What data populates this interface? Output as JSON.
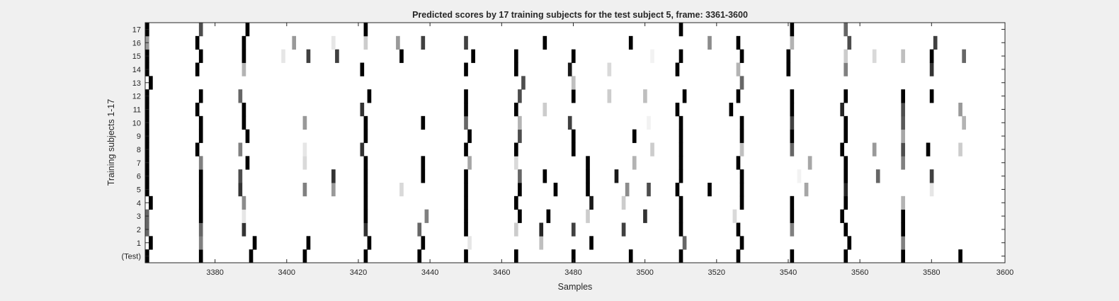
{
  "chart_data": {
    "type": "heatmap",
    "title": "Predicted scores by 17 training subjects for the test subject 5, frame: 3361-3600",
    "xlabel": "Samples",
    "ylabel": "Training subjects 1-17",
    "xlim": [
      3361,
      3600
    ],
    "x_ticks": [
      3380,
      3400,
      3420,
      3440,
      3460,
      3480,
      3500,
      3520,
      3540,
      3560,
      3580,
      3600
    ],
    "y_tick_labels": [
      "(Test)",
      "1",
      "2",
      "3",
      "4",
      "5",
      "6",
      "7",
      "8",
      "9",
      "10",
      "11",
      "12",
      "13",
      "14",
      "15",
      "16",
      "17"
    ],
    "grid": false,
    "colormap": "white-to-black grayscale (higher score darker)",
    "rows": [
      {
        "label": "(Test)",
        "cells": [
          [
            3361,
            1
          ],
          [
            3376,
            1
          ],
          [
            3390,
            1
          ],
          [
            3405,
            1
          ],
          [
            3422,
            1
          ],
          [
            3437,
            1
          ],
          [
            3450,
            1
          ],
          [
            3464,
            1
          ],
          [
            3480,
            1
          ],
          [
            3496,
            1
          ],
          [
            3510,
            1
          ],
          [
            3526,
            1
          ],
          [
            3541,
            1
          ],
          [
            3556,
            1
          ],
          [
            3572,
            1
          ],
          [
            3588,
            1
          ]
        ]
      },
      {
        "label": "1",
        "cells": [
          [
            3362,
            1
          ],
          [
            3376,
            0.5
          ],
          [
            3391,
            1
          ],
          [
            3406,
            1
          ],
          [
            3423,
            1
          ],
          [
            3438,
            1
          ],
          [
            3451,
            0.1
          ],
          [
            3471,
            0.25
          ],
          [
            3485,
            1
          ],
          [
            3511,
            0.6
          ],
          [
            3527,
            1
          ],
          [
            3557,
            1
          ],
          [
            3572,
            0.5
          ]
        ]
      },
      {
        "label": "2",
        "cells": [
          [
            3361,
            0.6
          ],
          [
            3376,
            0.6
          ],
          [
            3388,
            0.8
          ],
          [
            3422,
            0.8
          ],
          [
            3437,
            0.6
          ],
          [
            3450,
            1
          ],
          [
            3464,
            0.2
          ],
          [
            3471,
            0.85
          ],
          [
            3480,
            0.75
          ],
          [
            3494,
            0.75
          ],
          [
            3510,
            1
          ],
          [
            3526,
            1
          ],
          [
            3541,
            0.5
          ],
          [
            3556,
            1
          ],
          [
            3572,
            1
          ]
        ]
      },
      {
        "label": "3",
        "cells": [
          [
            3361,
            0.6
          ],
          [
            3376,
            1
          ],
          [
            3388,
            0.1
          ],
          [
            3422,
            1
          ],
          [
            3439,
            0.5
          ],
          [
            3450,
            1
          ],
          [
            3465,
            1
          ],
          [
            3473,
            1
          ],
          [
            3484,
            0.2
          ],
          [
            3500,
            0.8
          ],
          [
            3510,
            1
          ],
          [
            3525,
            0.15
          ],
          [
            3541,
            1
          ],
          [
            3555,
            1
          ],
          [
            3572,
            1
          ]
        ]
      },
      {
        "label": "4",
        "cells": [
          [
            3362,
            1
          ],
          [
            3376,
            1
          ],
          [
            3388,
            0.45
          ],
          [
            3422,
            1
          ],
          [
            3450,
            1
          ],
          [
            3464,
            1
          ],
          [
            3485,
            0.9
          ],
          [
            3494,
            0.2
          ],
          [
            3510,
            1
          ],
          [
            3527,
            1
          ],
          [
            3541,
            1
          ],
          [
            3556,
            1
          ],
          [
            3572,
            0.3
          ]
        ]
      },
      {
        "label": "5",
        "cells": [
          [
            3361,
            1
          ],
          [
            3376,
            1
          ],
          [
            3387,
            0.8
          ],
          [
            3405,
            0.5
          ],
          [
            3413,
            0.4
          ],
          [
            3422,
            1
          ],
          [
            3432,
            0.15
          ],
          [
            3450,
            1
          ],
          [
            3465,
            1
          ],
          [
            3475,
            1
          ],
          [
            3484,
            1
          ],
          [
            3495,
            0.45
          ],
          [
            3501,
            0.7
          ],
          [
            3509,
            1
          ],
          [
            3518,
            1
          ],
          [
            3527,
            1
          ],
          [
            3545,
            0.35
          ],
          [
            3556,
            0.85
          ],
          [
            3580,
            0.1
          ]
        ]
      },
      {
        "label": "6",
        "cells": [
          [
            3361,
            1
          ],
          [
            3376,
            1
          ],
          [
            3387,
            0.7
          ],
          [
            3413,
            0.8
          ],
          [
            3422,
            1
          ],
          [
            3438,
            1
          ],
          [
            3450,
            1
          ],
          [
            3465,
            0.6
          ],
          [
            3472,
            1
          ],
          [
            3484,
            1
          ],
          [
            3492,
            0.9
          ],
          [
            3510,
            1
          ],
          [
            3527,
            1
          ],
          [
            3543,
            0.05
          ],
          [
            3556,
            1
          ],
          [
            3565,
            0.6
          ],
          [
            3580,
            0.75
          ]
        ]
      },
      {
        "label": "7",
        "cells": [
          [
            3361,
            1
          ],
          [
            3376,
            0.5
          ],
          [
            3389,
            1
          ],
          [
            3405,
            0.15
          ],
          [
            3422,
            1
          ],
          [
            3438,
            1
          ],
          [
            3451,
            0.35
          ],
          [
            3464,
            0.15
          ],
          [
            3484,
            1
          ],
          [
            3497,
            0.3
          ],
          [
            3510,
            1
          ],
          [
            3526,
            1
          ],
          [
            3546,
            0.35
          ],
          [
            3556,
            1
          ],
          [
            3572,
            0.5
          ]
        ]
      },
      {
        "label": "8",
        "cells": [
          [
            3361,
            1
          ],
          [
            3375,
            1
          ],
          [
            3387,
            0.5
          ],
          [
            3405,
            0.1
          ],
          [
            3421,
            0.8
          ],
          [
            3450,
            1
          ],
          [
            3464,
            1
          ],
          [
            3480,
            1
          ],
          [
            3502,
            0.2
          ],
          [
            3510,
            1
          ],
          [
            3527,
            0.25
          ],
          [
            3541,
            0.6
          ],
          [
            3555,
            1
          ],
          [
            3564,
            0.4
          ],
          [
            3572,
            0.7
          ],
          [
            3579,
            1
          ],
          [
            3588,
            0.2
          ]
        ]
      },
      {
        "label": "9",
        "cells": [
          [
            3361,
            1
          ],
          [
            3376,
            1
          ],
          [
            3389,
            1
          ],
          [
            3422,
            1
          ],
          [
            3451,
            1
          ],
          [
            3465,
            0.7
          ],
          [
            3480,
            1
          ],
          [
            3497,
            1
          ],
          [
            3510,
            1
          ],
          [
            3527,
            1
          ],
          [
            3541,
            1
          ],
          [
            3556,
            1
          ],
          [
            3572,
            0.35
          ]
        ]
      },
      {
        "label": "10",
        "cells": [
          [
            3361,
            1
          ],
          [
            3376,
            1
          ],
          [
            3388,
            1
          ],
          [
            3405,
            0.4
          ],
          [
            3422,
            1
          ],
          [
            3438,
            1
          ],
          [
            3450,
            0.6
          ],
          [
            3465,
            0.3
          ],
          [
            3479,
            0.75
          ],
          [
            3501,
            0.05
          ],
          [
            3510,
            1
          ],
          [
            3527,
            1
          ],
          [
            3541,
            0.75
          ],
          [
            3556,
            1
          ],
          [
            3572,
            0.65
          ],
          [
            3589,
            0.3
          ]
        ]
      },
      {
        "label": "11",
        "cells": [
          [
            3361,
            1
          ],
          [
            3375,
            1
          ],
          [
            3388,
            1
          ],
          [
            3421,
            0.8
          ],
          [
            3450,
            1
          ],
          [
            3464,
            1
          ],
          [
            3472,
            0.2
          ],
          [
            3509,
            1
          ],
          [
            3524,
            1
          ],
          [
            3541,
            1
          ],
          [
            3555,
            0.85
          ],
          [
            3572,
            0.7
          ],
          [
            3588,
            0.4
          ]
        ]
      },
      {
        "label": "12",
        "cells": [
          [
            3361,
            1
          ],
          [
            3376,
            1
          ],
          [
            3387,
            0.6
          ],
          [
            3423,
            1
          ],
          [
            3450,
            1
          ],
          [
            3465,
            0.7
          ],
          [
            3480,
            1
          ],
          [
            3490,
            0.2
          ],
          [
            3500,
            0.25
          ],
          [
            3511,
            1
          ],
          [
            3526,
            1
          ],
          [
            3541,
            1
          ],
          [
            3556,
            1
          ],
          [
            3572,
            1
          ],
          [
            3580,
            1
          ]
        ]
      },
      {
        "label": "13",
        "cells": [
          [
            3362,
            1
          ],
          [
            3466,
            0.7
          ],
          [
            3480,
            0.25
          ],
          [
            3527,
            0.6
          ]
        ]
      },
      {
        "label": "14",
        "cells": [
          [
            3361,
            1
          ],
          [
            3375,
            1
          ],
          [
            3388,
            0.3
          ],
          [
            3421,
            1
          ],
          [
            3450,
            1
          ],
          [
            3464,
            1
          ],
          [
            3479,
            0.9
          ],
          [
            3490,
            0.15
          ],
          [
            3509,
            1
          ],
          [
            3526,
            0.3
          ],
          [
            3540,
            1
          ],
          [
            3556,
            0.5
          ],
          [
            3580,
            0.8
          ]
        ]
      },
      {
        "label": "15",
        "cells": [
          [
            3361,
            1
          ],
          [
            3376,
            1
          ],
          [
            3388,
            1
          ],
          [
            3399,
            0.1
          ],
          [
            3406,
            0.75
          ],
          [
            3414,
            0.75
          ],
          [
            3432,
            1
          ],
          [
            3452,
            1
          ],
          [
            3464,
            1
          ],
          [
            3480,
            1
          ],
          [
            3502,
            0.05
          ],
          [
            3510,
            1
          ],
          [
            3527,
            1
          ],
          [
            3540,
            1
          ],
          [
            3556,
            0.2
          ],
          [
            3564,
            0.15
          ],
          [
            3572,
            0.25
          ],
          [
            3580,
            1
          ],
          [
            3589,
            0.6
          ]
        ]
      },
      {
        "label": "16",
        "cells": [
          [
            3361,
            0.4
          ],
          [
            3375,
            1
          ],
          [
            3388,
            1
          ],
          [
            3402,
            0.4
          ],
          [
            3413,
            0.1
          ],
          [
            3422,
            0.2
          ],
          [
            3431,
            0.4
          ],
          [
            3438,
            0.75
          ],
          [
            3450,
            0.75
          ],
          [
            3472,
            1
          ],
          [
            3496,
            1
          ],
          [
            3518,
            0.45
          ],
          [
            3526,
            1
          ],
          [
            3541,
            0.3
          ],
          [
            3557,
            0.7
          ],
          [
            3581,
            0.75
          ]
        ]
      },
      {
        "label": "17",
        "cells": [
          [
            3361,
            1
          ],
          [
            3376,
            0.7
          ],
          [
            3389,
            1
          ],
          [
            3422,
            1
          ],
          [
            3510,
            1
          ],
          [
            3541,
            1
          ],
          [
            3556,
            0.6
          ]
        ]
      }
    ]
  }
}
